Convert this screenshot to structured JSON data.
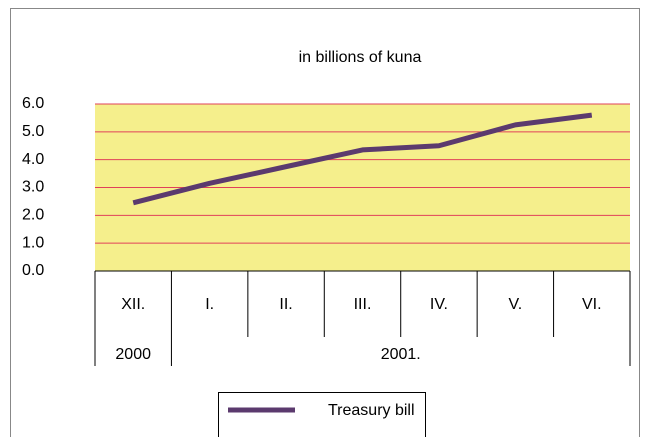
{
  "chart_data": {
    "type": "line",
    "title": "in billions of kuna",
    "groups": [
      {
        "label": "2000",
        "categories": [
          "XII."
        ]
      },
      {
        "label": "2001.",
        "categories": [
          "I.",
          "II.",
          "III.",
          "IV.",
          "V.",
          "VI."
        ]
      }
    ],
    "series": [
      {
        "name": "Treasury bill",
        "color": "#5b3a6e",
        "values": [
          2.45,
          3.15,
          3.75,
          4.35,
          4.5,
          5.25,
          5.6
        ]
      }
    ],
    "ylim": [
      0,
      6
    ],
    "yticks": [
      {
        "value": 0,
        "label": "0.0"
      },
      {
        "value": 1,
        "label": "1.0"
      },
      {
        "value": 2,
        "label": "2.0"
      },
      {
        "value": 3,
        "label": "3.0"
      },
      {
        "value": 4,
        "label": "4.0"
      },
      {
        "value": 5,
        "label": "5.0"
      },
      {
        "value": 6,
        "label": "6.0"
      }
    ],
    "grid": true,
    "grid_color": "#e0405a",
    "plot_background": "#f5ef8c",
    "legend": "bottom"
  }
}
